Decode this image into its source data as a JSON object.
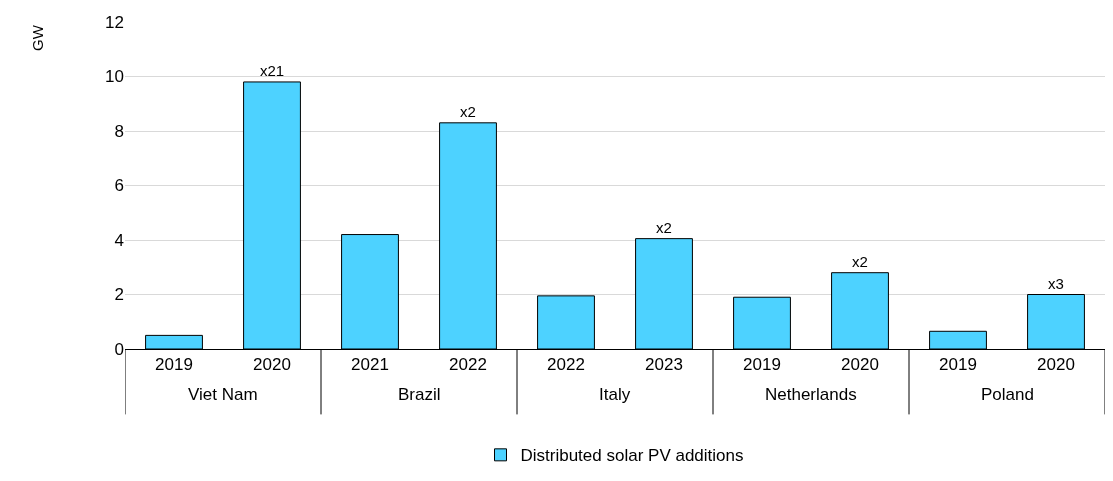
{
  "chart_data": {
    "type": "bar",
    "ylabel": "GW",
    "categories": [
      "2019",
      "2020",
      "2021",
      "2022",
      "2022",
      "2023",
      "2019",
      "2020",
      "2019",
      "2020"
    ],
    "annotations": [
      "Viet Nam",
      "Brazil",
      "Italy",
      "Netherlands",
      "Poland"
    ],
    "series": [
      {
        "name": "Distributed solar PV additions",
        "color": "#4dd2ff",
        "values": [
          0.5,
          9.8,
          4.2,
          8.3,
          1.95,
          4.05,
          1.9,
          2.8,
          0.65,
          2.0
        ],
        "value_labels": [
          null,
          "x21",
          null,
          "x2",
          null,
          "x2",
          null,
          "x2",
          null,
          "x3"
        ]
      }
    ],
    "ylim": [
      0,
      12
    ],
    "yticks": [
      0,
      2,
      4,
      6,
      8,
      10,
      12
    ],
    "grid": "y",
    "legend": "bottom"
  }
}
